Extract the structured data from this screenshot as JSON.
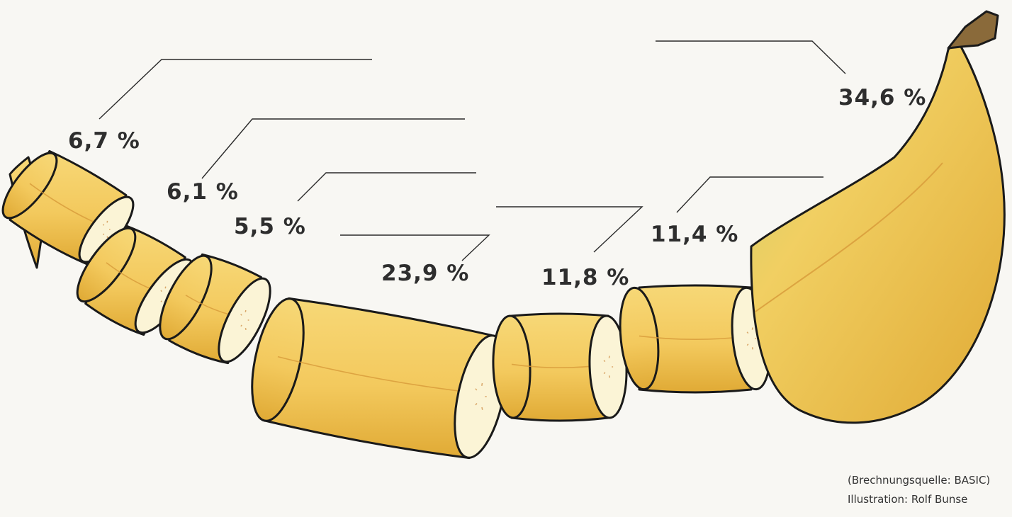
{
  "chart_data": {
    "type": "bar",
    "categories": [
      "6,7 %",
      "6,1 %",
      "5,5 %",
      "23,9 %",
      "11,8 %",
      "11,4 %",
      "34,6 %"
    ],
    "values": [
      6.7,
      6.1,
      5.5,
      23.9,
      11.8,
      11.4,
      34.6
    ],
    "value_labels": [
      "6,7 %",
      "6,1 %",
      "5,5 %",
      "23,9 %",
      "11,8 %",
      "11,4 %",
      "34,6 %"
    ],
    "title": "",
    "xlabel": "",
    "ylabel": "",
    "grid": false,
    "legend": "none"
  },
  "credits": {
    "source": "(Brechnungsquelle: BASIC)",
    "illustration": "Illustration: Rolf Bunse"
  },
  "colors": {
    "peel": "#f3c95d",
    "peel_dark": "#e0aa35",
    "stem_green": "#c9cf6a",
    "flesh": "#fbf4d6",
    "outline": "#1a1a1a",
    "leader": "#2a2a2a",
    "stem_tip": "#8a6a3a"
  }
}
